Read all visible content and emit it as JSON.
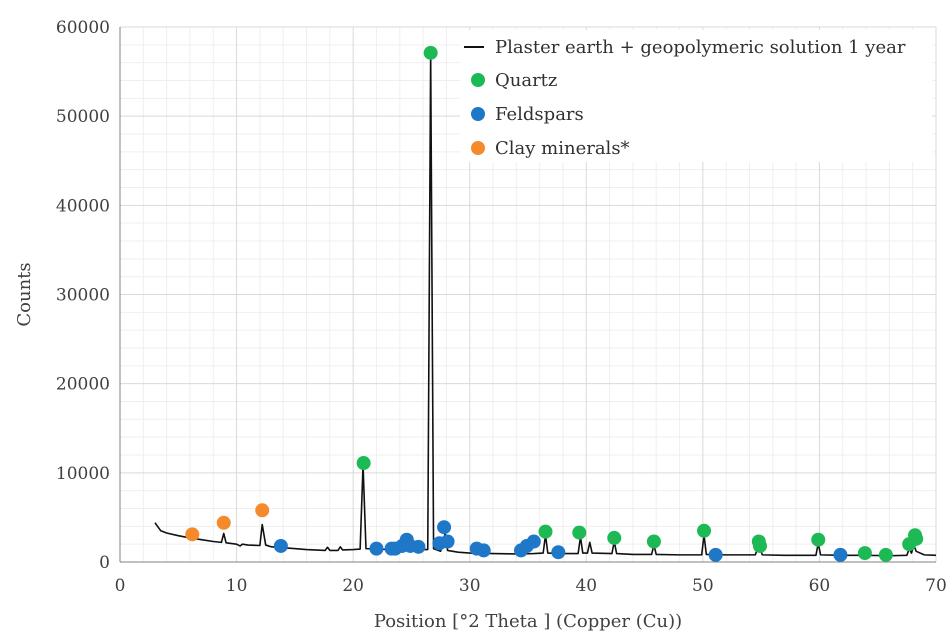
{
  "chart_data": {
    "type": "line",
    "title": "",
    "xlabel": "Position [°2 Theta ] (Copper (Cu))",
    "ylabel": "Counts",
    "xlim": [
      0,
      70
    ],
    "ylim": [
      0,
      60000
    ],
    "x_ticks": [
      0,
      10,
      20,
      30,
      40,
      50,
      60,
      70
    ],
    "y_ticks": [
      0,
      10000,
      20000,
      30000,
      40000,
      50000,
      60000
    ],
    "grid": true,
    "legend_position": "top-right",
    "colors": {
      "line": "#111111",
      "quartz": "#1db954",
      "feldspars": "#1f77c8",
      "clay": "#f58a2c"
    },
    "series": [
      {
        "name": "Plaster earth + geopolymeric solution 1 year",
        "style": "line",
        "points": [
          [
            3.0,
            4400
          ],
          [
            3.5,
            3500
          ],
          [
            4.0,
            3250
          ],
          [
            5.0,
            2950
          ],
          [
            6.0,
            2700
          ],
          [
            7.0,
            2500
          ],
          [
            8.0,
            2300
          ],
          [
            8.7,
            2200
          ],
          [
            8.9,
            3200
          ],
          [
            9.1,
            2150
          ],
          [
            10.0,
            2000
          ],
          [
            10.3,
            1800
          ],
          [
            10.5,
            2000
          ],
          [
            11.0,
            1900
          ],
          [
            12.0,
            1850
          ],
          [
            12.2,
            4200
          ],
          [
            12.5,
            1900
          ],
          [
            13.0,
            1700
          ],
          [
            14.0,
            1600
          ],
          [
            16.0,
            1400
          ],
          [
            17.6,
            1300
          ],
          [
            17.8,
            1650
          ],
          [
            18.0,
            1300
          ],
          [
            18.7,
            1300
          ],
          [
            18.9,
            1700
          ],
          [
            19.1,
            1350
          ],
          [
            20.0,
            1400
          ],
          [
            20.6,
            1450
          ],
          [
            20.85,
            10900
          ],
          [
            21.1,
            1500
          ],
          [
            22.0,
            1450
          ],
          [
            23.0,
            1400
          ],
          [
            24.0,
            1450
          ],
          [
            25.0,
            1350
          ],
          [
            26.0,
            1400
          ],
          [
            26.4,
            1400
          ],
          [
            26.65,
            57000
          ],
          [
            26.9,
            1500
          ],
          [
            27.5,
            1200
          ],
          [
            27.9,
            3200
          ],
          [
            28.1,
            1300
          ],
          [
            29.0,
            1100
          ],
          [
            30.0,
            1000
          ],
          [
            32.0,
            950
          ],
          [
            34.0,
            900
          ],
          [
            35.5,
            950
          ],
          [
            36.3,
            1000
          ],
          [
            36.5,
            3000
          ],
          [
            36.7,
            1000
          ],
          [
            38.0,
            950
          ],
          [
            39.3,
            950
          ],
          [
            39.5,
            2800
          ],
          [
            39.7,
            1000
          ],
          [
            40.1,
            1000
          ],
          [
            40.3,
            2200
          ],
          [
            40.5,
            1000
          ],
          [
            42.2,
            950
          ],
          [
            42.4,
            2300
          ],
          [
            42.6,
            950
          ],
          [
            44.0,
            850
          ],
          [
            45.6,
            850
          ],
          [
            45.8,
            1900
          ],
          [
            46.0,
            850
          ],
          [
            48.0,
            800
          ],
          [
            49.9,
            800
          ],
          [
            50.1,
            3000
          ],
          [
            50.3,
            850
          ],
          [
            52.0,
            800
          ],
          [
            54.5,
            800
          ],
          [
            54.8,
            1900
          ],
          [
            55.1,
            800
          ],
          [
            57.0,
            750
          ],
          [
            59.7,
            750
          ],
          [
            59.9,
            2100
          ],
          [
            60.1,
            800
          ],
          [
            62.0,
            750
          ],
          [
            64.0,
            750
          ],
          [
            66.0,
            700
          ],
          [
            67.5,
            750
          ],
          [
            67.7,
            1500
          ],
          [
            67.9,
            1000
          ],
          [
            68.1,
            1900
          ],
          [
            68.3,
            1200
          ],
          [
            69.0,
            800
          ],
          [
            70.0,
            750
          ]
        ]
      },
      {
        "name": "Quartz",
        "style": "marker",
        "color": "#1db954",
        "points": [
          [
            20.9,
            11100
          ],
          [
            26.65,
            57100
          ],
          [
            36.5,
            3400
          ],
          [
            39.4,
            3300
          ],
          [
            42.4,
            2700
          ],
          [
            45.8,
            2300
          ],
          [
            50.1,
            3500
          ],
          [
            54.8,
            2300
          ],
          [
            54.9,
            1800
          ],
          [
            59.9,
            2500
          ],
          [
            63.9,
            1000
          ],
          [
            65.7,
            800
          ],
          [
            67.7,
            2000
          ],
          [
            68.2,
            3000
          ],
          [
            68.3,
            2600
          ]
        ]
      },
      {
        "name": "Feldspars",
        "style": "marker",
        "color": "#1f77c8",
        "points": [
          [
            13.8,
            1800
          ],
          [
            22.0,
            1500
          ],
          [
            23.3,
            1500
          ],
          [
            23.6,
            1500
          ],
          [
            24.2,
            1800
          ],
          [
            24.6,
            2500
          ],
          [
            24.9,
            1800
          ],
          [
            25.6,
            1700
          ],
          [
            27.4,
            2100
          ],
          [
            27.8,
            3900
          ],
          [
            28.1,
            2300
          ],
          [
            30.6,
            1500
          ],
          [
            31.2,
            1300
          ],
          [
            34.4,
            1300
          ],
          [
            34.9,
            1800
          ],
          [
            35.5,
            2300
          ],
          [
            37.6,
            1100
          ],
          [
            51.1,
            800
          ],
          [
            61.8,
            800
          ]
        ]
      },
      {
        "name": "Clay minerals*",
        "style": "marker",
        "color": "#f58a2c",
        "points": [
          [
            6.2,
            3100
          ],
          [
            8.9,
            4400
          ],
          [
            12.2,
            5800
          ]
        ]
      }
    ]
  }
}
